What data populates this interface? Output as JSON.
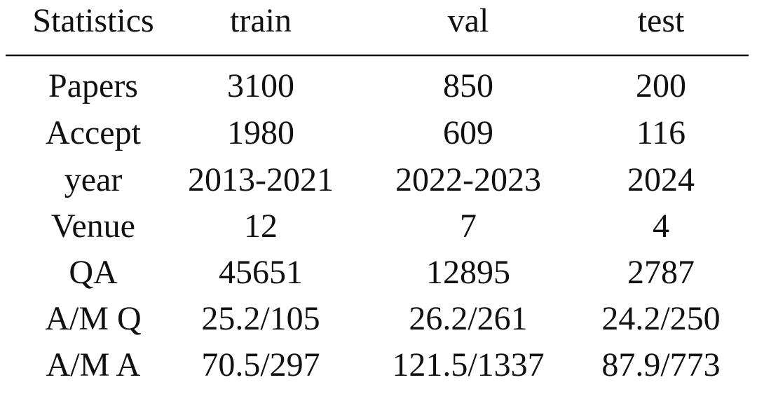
{
  "table": {
    "header": [
      "Statistics",
      "train",
      "val",
      "test"
    ],
    "rows": [
      [
        "Papers",
        "3100",
        "850",
        "200"
      ],
      [
        "Accept",
        "1980",
        "609",
        "116"
      ],
      [
        "year",
        "2013-2021",
        "2022-2023",
        "2024"
      ],
      [
        "Venue",
        "12",
        "7",
        "4"
      ],
      [
        "QA",
        "45651",
        "12895",
        "2787"
      ],
      [
        "A/M Q",
        "25.2/105",
        "26.2/261",
        "24.2/250"
      ],
      [
        "A/M A",
        "70.5/297",
        "121.5/1337",
        "87.9/773"
      ]
    ]
  }
}
